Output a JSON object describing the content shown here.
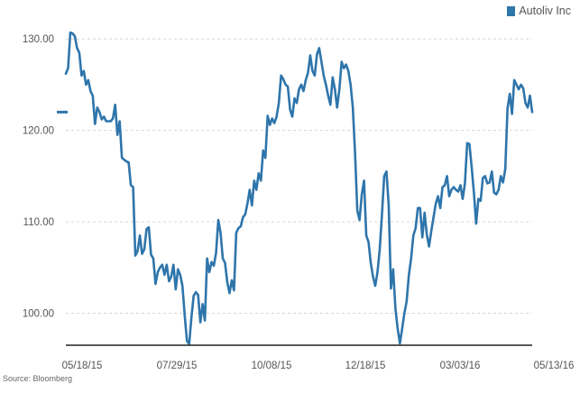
{
  "legend": {
    "label": "Autoliv Inc",
    "color": "#2e75ab"
  },
  "source": "Source: Bloomberg",
  "colors": {
    "line": "#2e75ab",
    "grid": "#d6d6d6",
    "axis": "#222222",
    "marker": "#2e75ab"
  },
  "chart_data": {
    "type": "line",
    "title": "",
    "xlabel": "",
    "ylabel": "",
    "grid": true,
    "legend_position": "top-right",
    "x_ticks": [
      "05/18/15",
      "07/29/15",
      "10/08/15",
      "12/18/15",
      "03/03/16",
      "05/13/16"
    ],
    "y_ticks": [
      "100.00",
      "110.00",
      "120.00",
      "130.00"
    ],
    "ylim": [
      96.5,
      131.5
    ],
    "series": [
      {
        "name": "Autoliv Inc",
        "values": [
          126.2,
          126.8,
          130.7,
          130.6,
          130.3,
          129.0,
          128.5,
          126.0,
          126.5,
          125.0,
          125.5,
          124.3,
          123.8,
          120.7,
          122.5,
          122.0,
          121.2,
          121.5,
          121.0,
          121.0,
          121.0,
          121.3,
          122.8,
          119.5,
          121.0,
          117.0,
          116.8,
          116.6,
          116.5,
          114.0,
          113.8,
          106.3,
          106.8,
          108.5,
          106.5,
          107.0,
          109.2,
          109.4,
          106.4,
          106.0,
          103.2,
          104.5,
          105.0,
          105.3,
          104.2,
          105.3,
          103.5,
          104.0,
          105.3,
          102.6,
          104.8,
          104.2,
          103.0,
          99.8,
          97.0,
          96.6,
          99.5,
          101.9,
          102.3,
          102.0,
          99.0,
          101.0,
          99.2,
          106.0,
          104.5,
          105.6,
          105.2,
          106.6,
          110.2,
          108.8,
          106.0,
          105.5,
          103.4,
          102.2,
          103.6,
          102.5,
          108.8,
          109.3,
          109.5,
          110.5,
          110.8,
          112.0,
          113.5,
          111.8,
          114.5,
          113.5,
          115.3,
          114.5,
          117.8,
          117.0,
          121.6,
          120.6,
          121.3,
          120.8,
          121.5,
          123.0,
          126.0,
          125.6,
          125.0,
          124.8,
          122.3,
          121.5,
          123.5,
          123.0,
          124.5,
          125.0,
          124.3,
          125.5,
          126.3,
          128.2,
          126.5,
          126.0,
          128.3,
          129.0,
          127.5,
          126.0,
          125.0,
          123.8,
          122.8,
          125.8,
          124.5,
          122.5,
          124.5,
          127.5,
          126.8,
          127.2,
          126.5,
          125.0,
          122.5,
          117.5,
          111.2,
          110.2,
          113.0,
          114.5,
          108.5,
          107.8,
          105.5,
          104.0,
          103.0,
          104.5,
          107.0,
          110.8,
          115.0,
          115.5,
          111.8,
          102.7,
          104.8,
          100.5,
          98.3,
          96.7,
          98.3,
          100.0,
          101.3,
          104.2,
          106.0,
          108.5,
          109.3,
          111.5,
          111.5,
          108.3,
          111.0,
          108.6,
          107.3,
          109.0,
          110.5,
          112.0,
          112.8,
          111.5,
          113.8,
          114.0,
          115.0,
          112.8,
          113.5,
          113.8,
          113.5,
          113.3,
          114.0,
          112.5,
          114.2,
          118.6,
          118.5,
          116.0,
          113.2,
          109.8,
          112.5,
          112.3,
          114.8,
          115.0,
          114.2,
          114.3,
          115.5,
          113.2,
          113.0,
          113.5,
          115.0,
          114.3,
          115.8,
          122.4,
          124.0,
          121.8,
          125.5,
          125.0,
          124.5,
          125.0,
          124.6,
          123.0,
          122.5,
          123.8,
          122.0
        ]
      }
    ]
  }
}
